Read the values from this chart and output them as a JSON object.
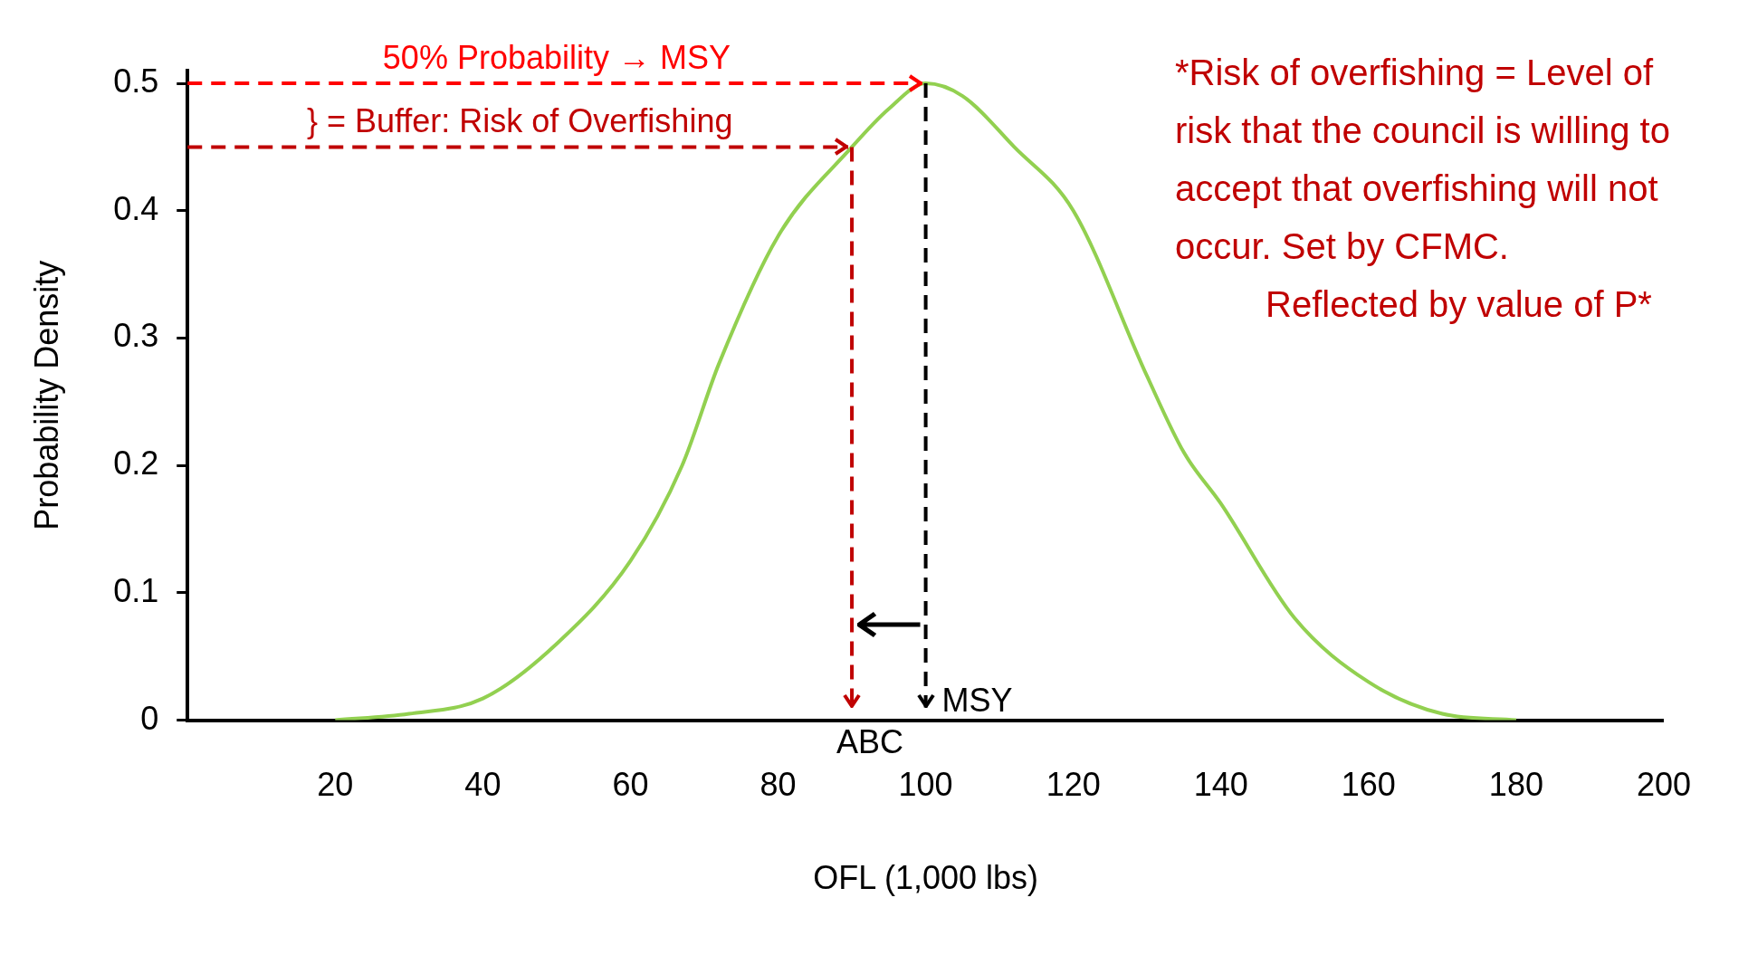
{
  "chart_data": {
    "type": "line",
    "xlabel": "OFL (1,000 lbs)",
    "ylabel": "Probability Density",
    "x": [
      20,
      30,
      40,
      50,
      60,
      67,
      72,
      80,
      90,
      95,
      100,
      105,
      112,
      120,
      130,
      135,
      140,
      150,
      160,
      170,
      180
    ],
    "series": [
      {
        "color": "#92d050",
        "values": [
          0,
          0.005,
          0.017,
          0.06,
          0.125,
          0.2,
          0.28,
          0.38,
          0.45,
          0.48,
          0.5,
          0.49,
          0.45,
          0.4,
          0.27,
          0.21,
          0.17,
          0.08,
          0.03,
          0.005,
          0
        ]
      }
    ],
    "xlim": [
      0,
      200
    ],
    "xticks": [
      20,
      40,
      60,
      80,
      100,
      120,
      140,
      160,
      180,
      200
    ],
    "ylim": [
      0,
      0.51
    ],
    "yticks": [
      0,
      0.1,
      0.2,
      0.3,
      0.4,
      0.5
    ],
    "grid": false,
    "legend": false,
    "marker": "none",
    "line_style": "solid",
    "ref_lines": [
      {
        "axis": "y",
        "value": 0.5,
        "label": "50% Probability → MSY",
        "color": "#ff0000",
        "line_style": "dashed"
      },
      {
        "axis": "y",
        "value": 0.45,
        "label": "} = Buffer: Risk of Overfishing",
        "color": "#c00000",
        "line_style": "dashed"
      },
      {
        "axis": "x",
        "value": 90,
        "label": "ABC",
        "color": "#c00000",
        "line_style": "dashed"
      },
      {
        "axis": "x",
        "value": 100,
        "label": "MSY",
        "color": "#000000",
        "line_style": "dashed"
      }
    ],
    "annotations": [
      "*Risk of overfishing = Level of risk that the council is willing to accept that overfishing will not occur. Set by CFMC.",
      "Reflected by value of P*"
    ]
  }
}
